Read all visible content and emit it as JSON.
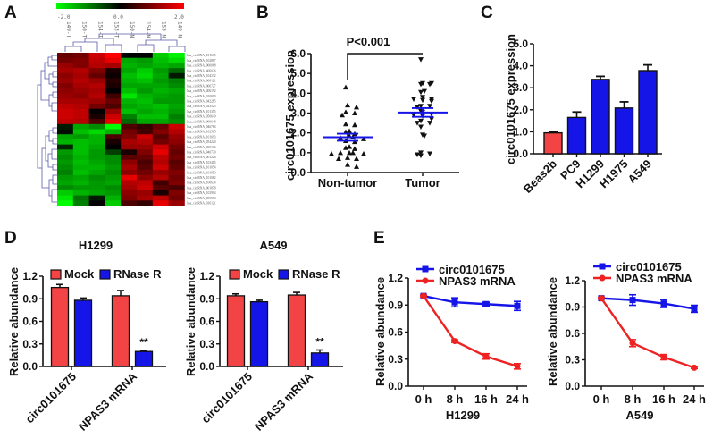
{
  "figure": {
    "panels": [
      "A",
      "B",
      "C",
      "D",
      "E"
    ]
  },
  "chart_data": [
    {
      "id": "A",
      "type": "heatmap",
      "panel_label": "A",
      "colorbar": {
        "min_label": "-2.0",
        "mid_label": "0.0",
        "max_label": "2.0",
        "colors": [
          "#00ff00",
          "#000000",
          "#ff0000"
        ]
      },
      "columns": [
        "149-T",
        "150-T",
        "154-T",
        "153-T",
        "150-N",
        "154-N",
        "153-N",
        "149-N"
      ],
      "rows": [
        "hsa_circRNA_101675",
        "hsa_circRNA_102887",
        "hsa_circRNA_000068",
        "hsa_circRNA_406026",
        "hsa_circRNA_104172",
        "hsa_circRNA_000121",
        "hsa_circRNA_006727",
        "hsa_circRNA_406192",
        "hsa_circRNA_010990",
        "hsa_circRNA_042265",
        "hsa_circRNA_023525",
        "hsa_circRNA_101355",
        "hsa_circRNA_050649",
        "hsa_circRNA_090648",
        "hsa_circRNA_046784",
        "hsa_circRNA_102585",
        "hsa_circRNA_101093",
        "hsa_circRNA_054220",
        "hsa_circRNA_000106",
        "hsa_circRNA_040730",
        "hsa_circRNA_001226",
        "hsa_circRNA_103415",
        "hsa_circRNA_101054",
        "hsa_circRNA_101053",
        "hsa_circRNA_101082",
        "hsa_circRNA_100634",
        "hsa_circRNA_001878",
        "hsa_circRNA_102904",
        "hsa_circRNA_009054",
        "hsa_circRNA_016121"
      ],
      "values": [
        [
          0.8,
          0.9,
          1.6,
          2.0,
          0.0,
          0.0,
          -1.6,
          -1.9
        ],
        [
          0.9,
          1.0,
          1.5,
          1.8,
          -1.3,
          -1.2,
          -1.5,
          -1.7
        ],
        [
          1.2,
          1.0,
          1.4,
          1.3,
          -1.4,
          -1.3,
          -1.4,
          -1.3
        ],
        [
          1.3,
          1.4,
          1.0,
          0.2,
          -1.3,
          -1.6,
          -1.2,
          -0.8
        ],
        [
          1.1,
          1.3,
          0.8,
          0.1,
          -1.5,
          -1.7,
          -1.3,
          -0.2
        ],
        [
          1.2,
          1.4,
          1.2,
          0.3,
          -1.4,
          -1.5,
          -1.2,
          -1.0
        ],
        [
          1.0,
          1.3,
          1.4,
          0.2,
          -1.3,
          -1.3,
          -1.3,
          -1.1
        ],
        [
          1.1,
          1.2,
          1.3,
          0.0,
          -1.5,
          -1.2,
          -1.4,
          -1.3
        ],
        [
          1.2,
          1.1,
          1.4,
          0.5,
          -1.8,
          -1.4,
          -1.3,
          -1.2
        ],
        [
          1.3,
          1.3,
          1.2,
          0.8,
          -1.4,
          -1.5,
          -1.2,
          -1.2
        ],
        [
          1.5,
          1.4,
          0.9,
          0.6,
          -1.3,
          -1.4,
          -1.5,
          -1.3
        ],
        [
          1.6,
          1.5,
          0.0,
          1.2,
          -1.5,
          -1.3,
          -1.4,
          -1.2
        ],
        [
          1.6,
          1.5,
          0.2,
          1.6,
          -1.0,
          -1.5,
          -1.5,
          -1.0
        ],
        [
          1.5,
          1.4,
          0.6,
          1.8,
          -0.8,
          -1.3,
          -1.3,
          -1.1
        ],
        [
          -0.2,
          -1.3,
          -1.1,
          -2.0,
          0.6,
          0.4,
          0.8,
          1.6
        ],
        [
          -0.1,
          -1.5,
          -1.7,
          -1.4,
          0.9,
          0.5,
          1.0,
          1.4
        ],
        [
          -1.3,
          -1.2,
          -1.4,
          0.6,
          1.0,
          1.6,
          0.7,
          1.2
        ],
        [
          -1.4,
          -1.5,
          -1.4,
          0.2,
          1.3,
          1.4,
          0.9,
          1.1
        ],
        [
          -0.3,
          -1.5,
          -1.3,
          0.0,
          1.2,
          1.2,
          1.6,
          0.9
        ],
        [
          -1.2,
          -1.5,
          -1.2,
          -0.5,
          0.2,
          1.0,
          1.8,
          0.8
        ],
        [
          -1.1,
          -1.4,
          -1.2,
          -1.1,
          0.7,
          0.8,
          1.5,
          0.9
        ],
        [
          -1.2,
          -1.5,
          -1.3,
          -1.1,
          1.1,
          0.6,
          1.4,
          0.7
        ],
        [
          -1.1,
          -1.4,
          -1.4,
          -1.2,
          1.3,
          0.7,
          1.6,
          0.8
        ],
        [
          -1.0,
          -1.5,
          -1.3,
          -1.1,
          1.1,
          0.9,
          1.2,
          1.0
        ],
        [
          -1.2,
          -1.3,
          -1.1,
          -1.2,
          1.8,
          1.1,
          1.4,
          0.9
        ],
        [
          -1.3,
          -1.4,
          -1.2,
          -1.3,
          1.4,
          1.5,
          0.5,
          1.0
        ],
        [
          -1.1,
          -1.2,
          -1.2,
          -1.1,
          1.3,
          1.6,
          0.7,
          0.6
        ],
        [
          -1.6,
          -1.4,
          -1.3,
          -1.2,
          1.1,
          1.2,
          0.2,
          1.0
        ],
        [
          -1.8,
          -0.9,
          -0.2,
          -1.4,
          1.0,
          1.3,
          1.5,
          0.9
        ],
        [
          -2.0,
          -1.0,
          0.0,
          -1.6,
          0.6,
          0.4,
          1.8,
          1.2
        ]
      ]
    },
    {
      "id": "B",
      "type": "scatter",
      "panel_label": "B",
      "title": "",
      "xlabel": "",
      "ylabel": "circ0101675 expression",
      "ylim": [
        0,
        6
      ],
      "yticks": [
        "0.0",
        "1.0",
        "2.0",
        "3.0",
        "4.0",
        "5.0",
        "6.0"
      ],
      "categories": [
        "Non-tumor",
        "Tumor"
      ],
      "annotation": "P<0.001",
      "series": [
        {
          "name": "Non-tumor",
          "marker": "triangle-up",
          "mean": 1.78,
          "sem": 0.18,
          "values": [
            4.3,
            3.4,
            3.3,
            3.05,
            3.0,
            2.9,
            2.45,
            2.4,
            2.1,
            2.05,
            1.95,
            1.85,
            1.8,
            1.75,
            1.7,
            1.6,
            1.55,
            1.3,
            1.25,
            1.2,
            1.0,
            1.0,
            1.0,
            0.95,
            0.95,
            0.75,
            0.7,
            0.7,
            0.4,
            0.3
          ]
        },
        {
          "name": "Tumor",
          "marker": "triangle-down",
          "mean": 3.03,
          "sem": 0.22,
          "values": [
            5.7,
            4.5,
            4.5,
            4.45,
            4.45,
            4.1,
            4.05,
            3.8,
            3.7,
            3.7,
            3.65,
            3.6,
            3.35,
            3.35,
            3.3,
            3.1,
            3.05,
            2.95,
            2.9,
            2.85,
            2.7,
            2.6,
            2.5,
            2.5,
            2.3,
            1.9,
            1.85,
            1.0,
            0.95,
            0.9,
            0.85
          ]
        }
      ]
    },
    {
      "id": "C",
      "type": "bar",
      "panel_label": "C",
      "ylabel": "circ0101675 expression",
      "ylim": [
        0,
        5
      ],
      "yticks": [
        "0.0",
        "1.0",
        "2.0",
        "3.0",
        "4.0",
        "5.0"
      ],
      "categories": [
        "Beas2b",
        "PC9",
        "H1299",
        "H1975",
        "A549"
      ],
      "values": [
        0.95,
        1.65,
        3.38,
        2.08,
        3.78
      ],
      "errors": [
        0.03,
        0.25,
        0.14,
        0.28,
        0.26
      ],
      "colors": [
        "#f24444",
        "#1515e8",
        "#1515e8",
        "#1515e8",
        "#1515e8"
      ]
    },
    {
      "id": "D1",
      "type": "bar",
      "panel_label": "D",
      "title": "H1299",
      "ylabel": "Relative abundance",
      "ylim": [
        0,
        1.2
      ],
      "yticks": [
        "0.0",
        "0.3",
        "0.6",
        "0.9",
        "1.2"
      ],
      "categories": [
        "circ0101675",
        "NPAS3 mRNA"
      ],
      "series": [
        {
          "name": "Mock",
          "color": "#f24444",
          "values": [
            1.05,
            0.94
          ],
          "errors": [
            0.04,
            0.07
          ]
        },
        {
          "name": "RNase R",
          "color": "#1515e8",
          "values": [
            0.88,
            0.2
          ],
          "errors": [
            0.03,
            0.015
          ]
        }
      ],
      "annotations": [
        {
          "category": "NPAS3 mRNA",
          "series": "RNase R",
          "text": "**"
        }
      ]
    },
    {
      "id": "D2",
      "type": "bar",
      "panel_label": "",
      "title": "A549",
      "ylabel": "Relative abundance",
      "ylim": [
        0,
        1.2
      ],
      "yticks": [
        "0.0",
        "0.3",
        "0.6",
        "0.9",
        "1.2"
      ],
      "categories": [
        "circ0101675",
        "NPAS3 mRNA"
      ],
      "series": [
        {
          "name": "Mock",
          "color": "#f24444",
          "values": [
            0.94,
            0.95
          ],
          "errors": [
            0.025,
            0.035
          ]
        },
        {
          "name": "RNase R",
          "color": "#1515e8",
          "values": [
            0.86,
            0.18
          ],
          "errors": [
            0.02,
            0.04
          ]
        }
      ],
      "annotations": [
        {
          "category": "NPAS3 mRNA",
          "series": "RNase R",
          "text": "**"
        }
      ]
    },
    {
      "id": "E1",
      "type": "line",
      "panel_label": "E",
      "xlabel": "H1299",
      "ylabel": "Relative abundance",
      "ylim": [
        0,
        1.2
      ],
      "yticks": [
        "0.0",
        "0.3",
        "0.6",
        "0.9",
        "1.2"
      ],
      "x": [
        "0 h",
        "8 h",
        "16 h",
        "24 h"
      ],
      "series": [
        {
          "name": "circ0101675",
          "color": "#1515e8",
          "marker": "square",
          "values": [
            1.0,
            0.93,
            0.91,
            0.89
          ],
          "errors": [
            0.01,
            0.05,
            0.02,
            0.05
          ]
        },
        {
          "name": "NPAS3 mRNA",
          "color": "#ee2222",
          "marker": "circle",
          "values": [
            1.0,
            0.5,
            0.33,
            0.22
          ],
          "errors": [
            0.01,
            0.015,
            0.03,
            0.03
          ]
        }
      ]
    },
    {
      "id": "E2",
      "type": "line",
      "panel_label": "",
      "xlabel": "A549",
      "ylabel": "Relative abundance",
      "ylim": [
        0,
        1.2
      ],
      "yticks": [
        "0.0",
        "0.3",
        "0.6",
        "0.9",
        "1.2"
      ],
      "x": [
        "0 h",
        "8 h",
        "16 h",
        "24 h"
      ],
      "series": [
        {
          "name": "circ0101675",
          "color": "#1515e8",
          "marker": "square",
          "values": [
            1.0,
            0.98,
            0.94,
            0.88
          ],
          "errors": [
            0.01,
            0.06,
            0.045,
            0.04
          ]
        },
        {
          "name": "NPAS3 mRNA",
          "color": "#ee2222",
          "marker": "circle",
          "values": [
            1.0,
            0.49,
            0.33,
            0.21
          ],
          "errors": [
            0.01,
            0.04,
            0.03,
            0.01
          ]
        }
      ]
    }
  ]
}
